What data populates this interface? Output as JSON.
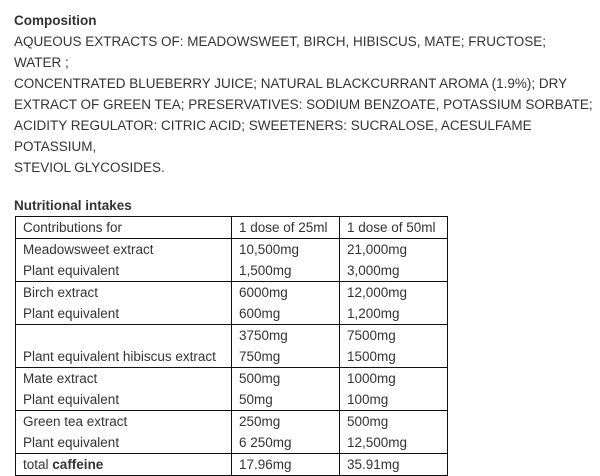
{
  "composition": {
    "title": "Composition",
    "lines": [
      "AQUEOUS EXTRACTS OF: MEADOWSWEET, BIRCH, HIBISCUS, MATE; FRUCTOSE; WATER ;",
      "CONCENTRATED BLUEBERRY JUICE; NATURAL BLACKCURRANT AROMA (1.9%); DRY",
      "EXTRACT OF GREEN TEA; PRESERVATIVES: SODIUM BENZOATE, POTASSIUM SORBATE;",
      "ACIDITY REGULATOR: CITRIC ACID; SWEETENERS: SUCRALOSE, ACESULFAME POTASSIUM,",
      "STEVIOL GLYCOSIDES."
    ]
  },
  "nutrition": {
    "title": "Nutritional intakes",
    "header": [
      "Contributions for",
      "1 dose of 25ml",
      "1 dose of 50ml"
    ],
    "rows": [
      {
        "label": [
          "Meadowsweet extract",
          "Plant equivalent"
        ],
        "dose25": [
          "10,500mg",
          "1,500mg"
        ],
        "dose50": [
          "21,000mg",
          "3,000mg"
        ]
      },
      {
        "label": [
          "Birch extract",
          "Plant equivalent"
        ],
        "dose25": [
          "6000mg",
          "600mg"
        ],
        "dose50": [
          "12,000mg",
          "1,200mg"
        ]
      },
      {
        "label": [
          "",
          "Plant equivalent hibiscus extract"
        ],
        "dose25": [
          "3750mg",
          "750mg"
        ],
        "dose50": [
          "7500mg",
          "1500mg"
        ]
      },
      {
        "label": [
          "Mate extract",
          "Plant equivalent"
        ],
        "dose25": [
          "500mg",
          "50mg"
        ],
        "dose50": [
          "1000mg",
          "100mg"
        ]
      },
      {
        "label": [
          "Green tea extract",
          "Plant equivalent"
        ],
        "dose25": [
          "250mg",
          "6 250mg"
        ],
        "dose50": [
          "500mg",
          "12,500mg"
        ]
      }
    ],
    "total": {
      "label_prefix": "total",
      "label_bold": "caffeine",
      "dose25": "17.96mg",
      "dose50": "35.91mg"
    }
  }
}
